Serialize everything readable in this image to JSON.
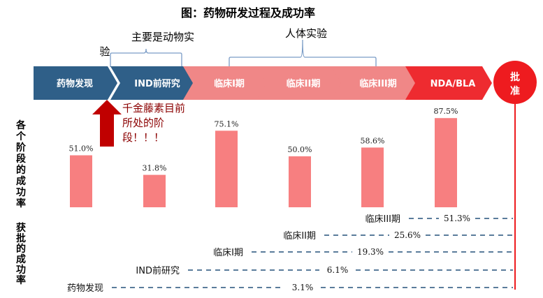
{
  "title": "图：药物研发过程及成功率",
  "top_labels": {
    "animal": "主要是动物实",
    "animal_tail": "验",
    "human": "人体实验"
  },
  "stages": [
    "药物发现",
    "IND前研究",
    "临床I期",
    "临床II期",
    "临床III期",
    "NDA/BLA"
  ],
  "approve": "批准",
  "annotation": [
    "千金藤素目前",
    "所处的阶",
    "段！！！"
  ],
  "left_labels": {
    "stage_success": "各个阶段的成功率",
    "approval_success": "获批的成功率"
  },
  "colors": {
    "stage_dark": "#2f5f88",
    "stage_light": "#f08787",
    "stage_nda": "#ee2b30",
    "approve_circle": "#ee1b1f",
    "bar": "#f77f80",
    "arrow": "#c00000",
    "dashed": "#24507a",
    "annotation_text": "#8b0000"
  },
  "chart_data": [
    {
      "type": "bar",
      "categories": [
        "药物发现",
        "IND前研究",
        "临床I期",
        "临床II期",
        "临床III期",
        "NDA/BLA"
      ],
      "values": [
        51.0,
        31.8,
        75.1,
        50.0,
        58.6,
        87.5
      ],
      "value_labels": [
        "51.0%",
        "31.8%",
        "75.1%",
        "50.0%",
        "58.6%",
        "87.5%"
      ],
      "ylim": [
        0,
        100
      ]
    },
    {
      "type": "table",
      "rows": [
        {
          "stage": "临床III期",
          "value": 51.3,
          "label": "51.3%"
        },
        {
          "stage": "临床II期",
          "value": 25.6,
          "label": "25.6%"
        },
        {
          "stage": "临床I期",
          "value": 19.3,
          "label": "19.3%"
        },
        {
          "stage": "IND前研究",
          "value": 6.1,
          "label": "6.1%"
        },
        {
          "stage": "药物发现",
          "value": 3.1,
          "label": "3.1%"
        }
      ]
    }
  ]
}
